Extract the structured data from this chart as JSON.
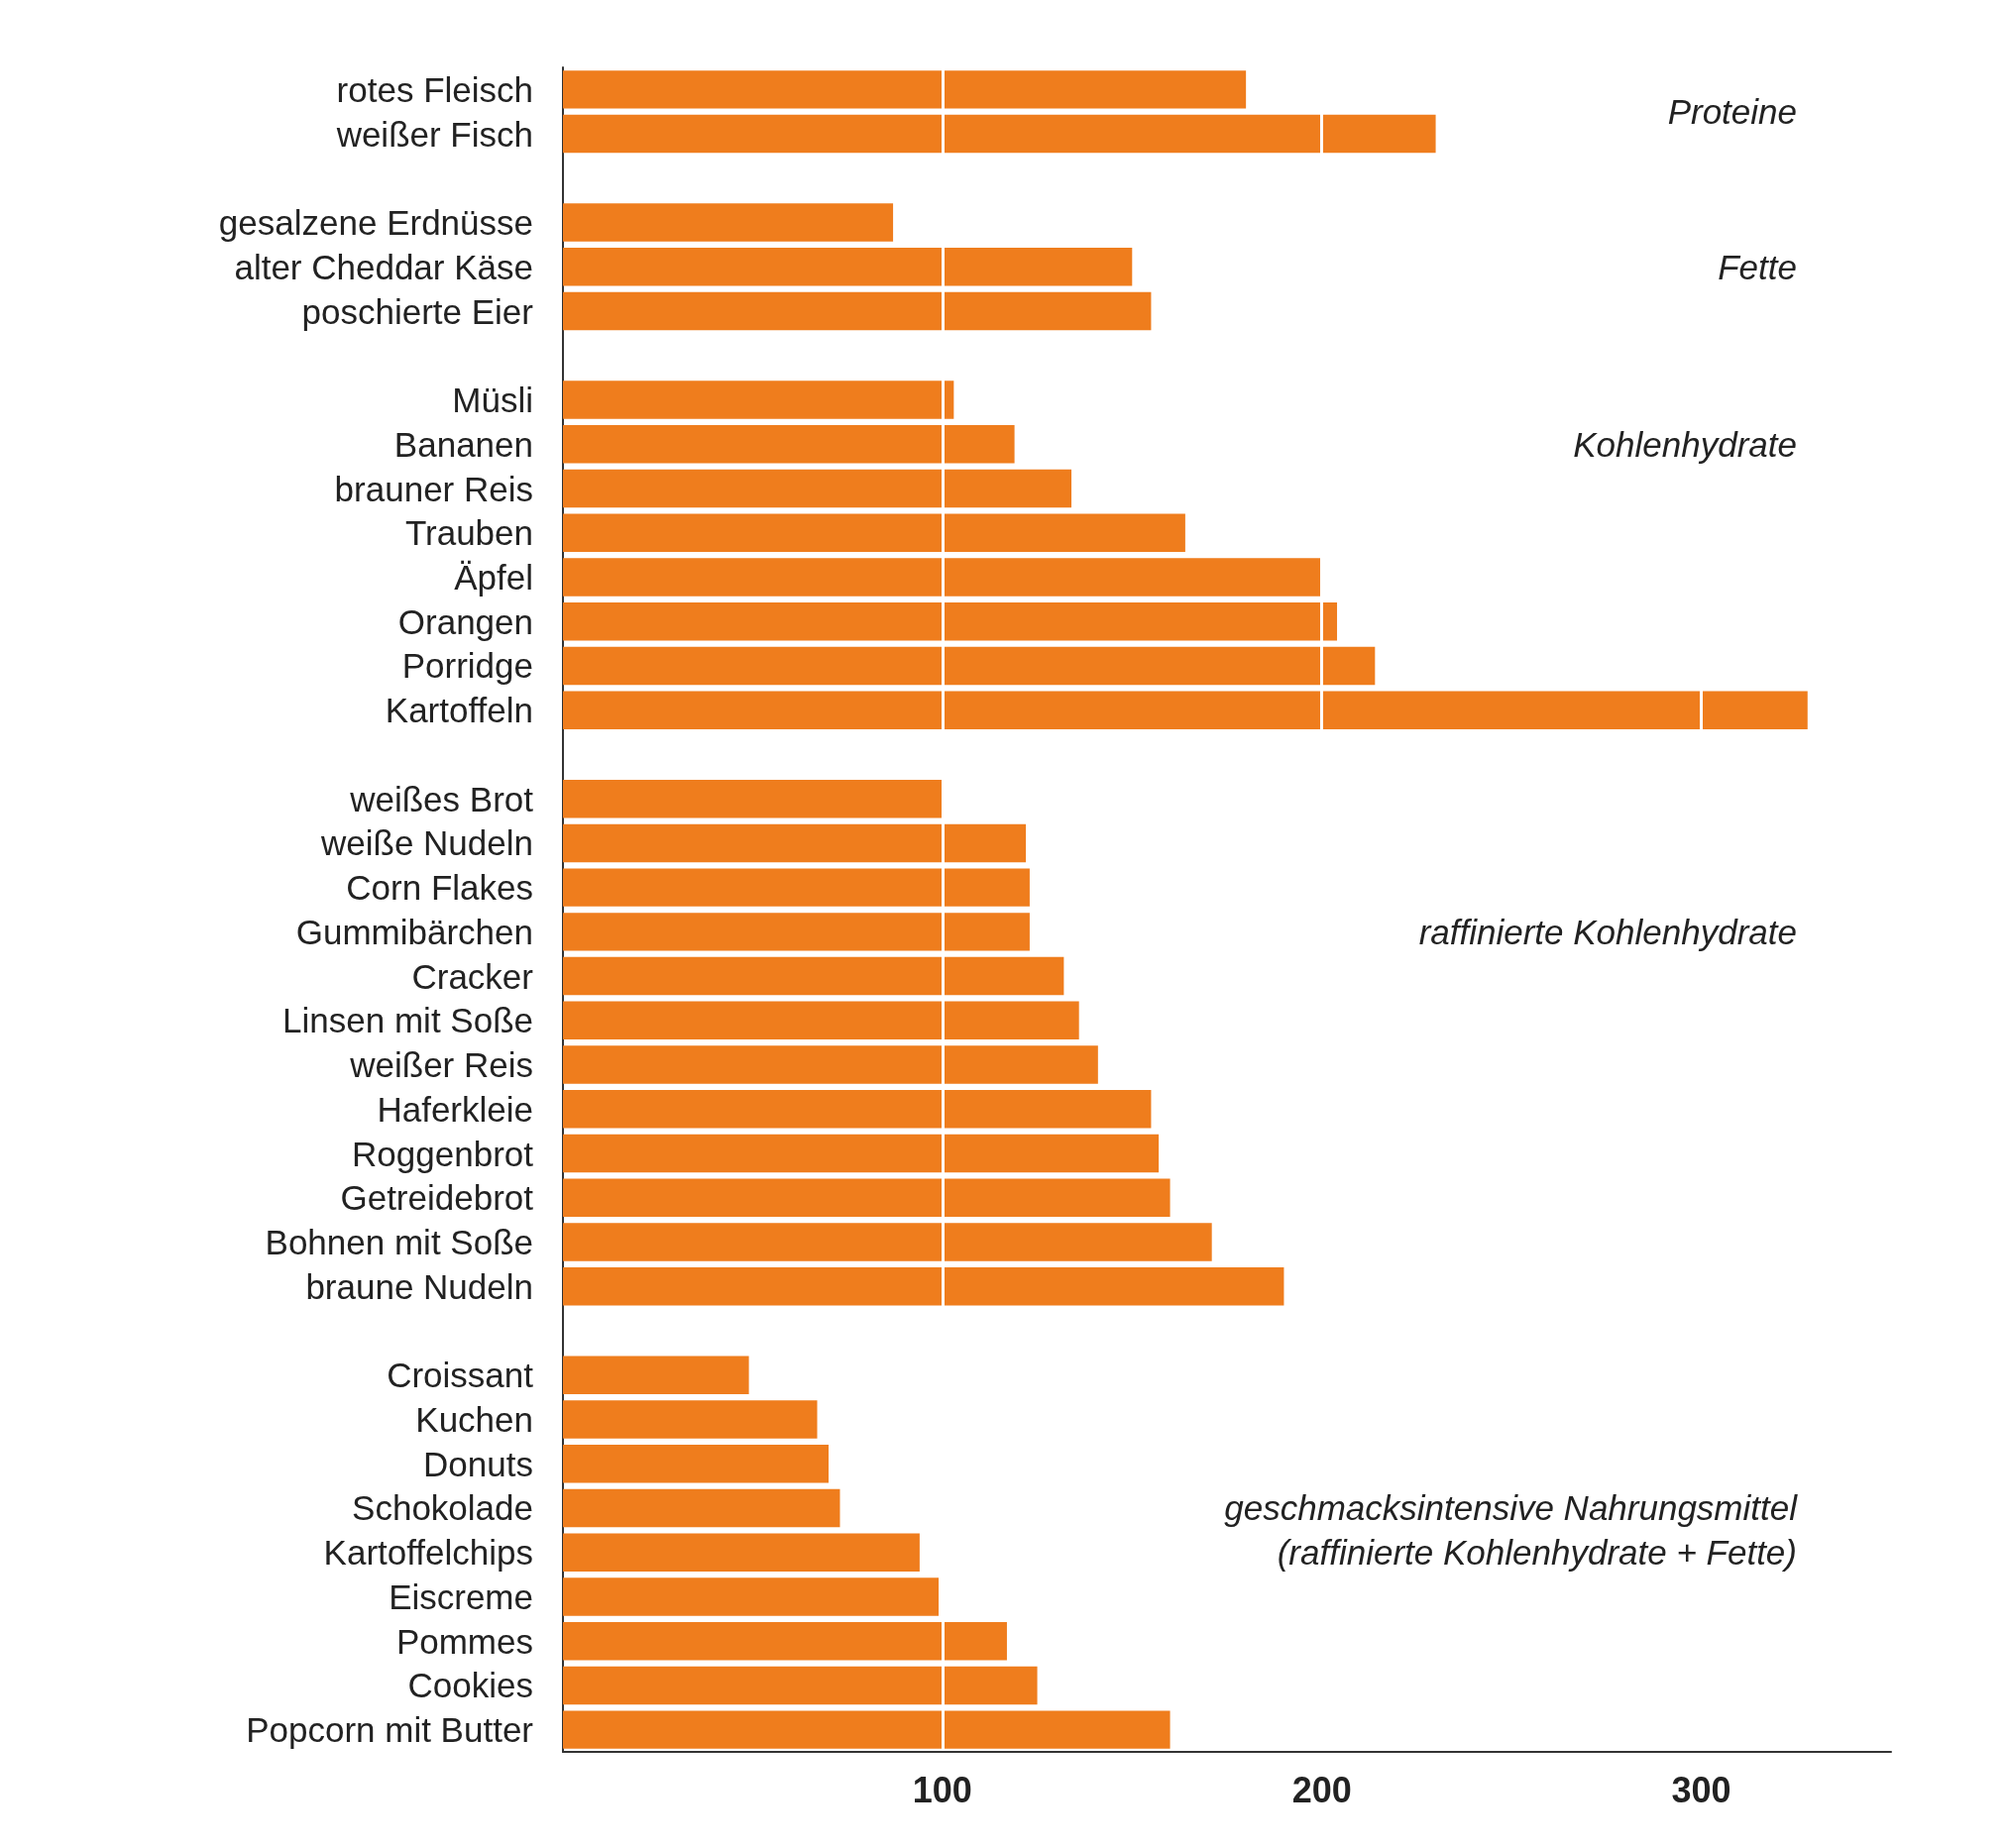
{
  "chart_data": {
    "type": "bar",
    "orientation": "horizontal",
    "categories": [
      "rotes Fleisch",
      "weißer Fisch",
      null,
      "gesalzene Erdnüsse",
      "alter Cheddar Käse",
      "poschierte Eier",
      null,
      "Müsli",
      "Bananen",
      "brauner Reis",
      "Trauben",
      "Äpfel",
      "Orangen",
      "Porridge",
      "Kartoffeln",
      null,
      "weißes Brot",
      "weiße Nudeln",
      "Corn Flakes",
      "Gummibärchen",
      "Cracker",
      "Linsen mit Soße",
      "weißer Reis",
      "Haferkleie",
      "Roggenbrot",
      "Getreidebrot",
      "Bohnen mit Soße",
      "braune Nudeln",
      null,
      "Croissant",
      "Kuchen",
      "Donuts",
      "Schokolade",
      "Kartoffelchips",
      "Eiscreme",
      "Pommes",
      "Cookies",
      "Popcorn mit Butter"
    ],
    "values": [
      180,
      230,
      null,
      87,
      150,
      155,
      null,
      103,
      119,
      134,
      164,
      200,
      204,
      214,
      328,
      null,
      100,
      122,
      123,
      123,
      132,
      136,
      141,
      155,
      157,
      160,
      171,
      190,
      null,
      49,
      67,
      70,
      73,
      94,
      99,
      117,
      125,
      160
    ],
    "color": "#ef7d1d",
    "xlim": [
      0,
      350
    ],
    "xticks": [
      100,
      200,
      300
    ],
    "grid": "x",
    "annotations": [
      "Proteine",
      "Fette",
      "Kohlenhydrate",
      "raffinierte Kohlenhydrate",
      "geschmacksintensive Nahrungsmittel\n(raffinierte Kohlenhydrate + Fette)"
    ]
  }
}
